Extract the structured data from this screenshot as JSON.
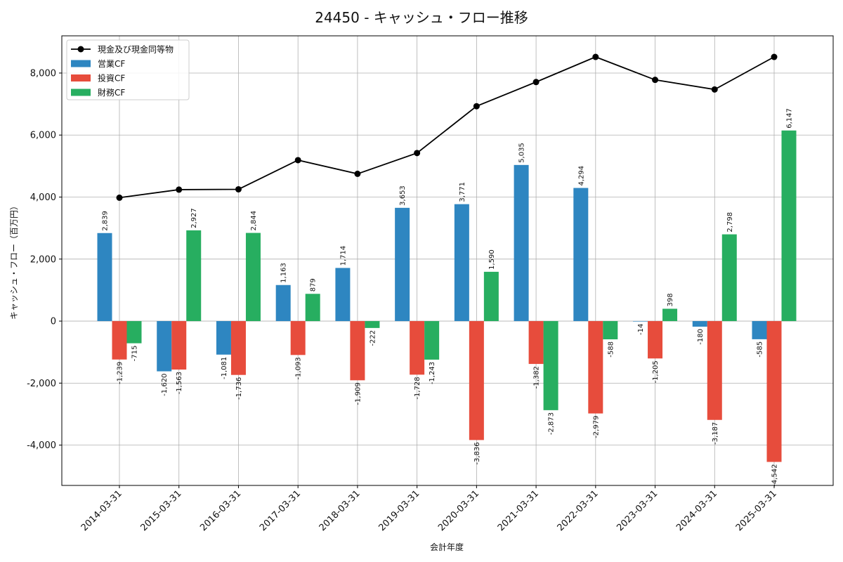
{
  "chart_data": {
    "type": "bar",
    "title": "24450 - キャッシュ・フロー推移",
    "xlabel": "会計年度",
    "ylabel": "キャッシュ・フロー（百万円）",
    "categories": [
      "2014-03-31",
      "2015-03-31",
      "2016-03-31",
      "2017-03-31",
      "2018-03-31",
      "2019-03-31",
      "2020-03-31",
      "2021-03-31",
      "2022-03-31",
      "2023-03-31",
      "2024-03-31",
      "2025-03-31"
    ],
    "series": [
      {
        "name": "営業CF",
        "type": "bar",
        "color": "#2e86c1",
        "values": [
          2839,
          -1620,
          -1081,
          1163,
          1714,
          3653,
          3771,
          5035,
          4294,
          -14,
          -180,
          -585
        ],
        "labels": [
          "2,839",
          "-1,620",
          "-1,081",
          "1,163",
          "1,714",
          "3,653",
          "3,771",
          "5,035",
          "4,294",
          "-14",
          "-180",
          "-585"
        ]
      },
      {
        "name": "投資CF",
        "type": "bar",
        "color": "#e74c3c",
        "values": [
          -1239,
          -1563,
          -1736,
          -1093,
          -1909,
          -1728,
          -3836,
          -1382,
          -2979,
          -1205,
          -3187,
          -4542
        ],
        "labels": [
          "-1,239",
          "-1,563",
          "-1,736",
          "-1,093",
          "-1,909",
          "-1,728",
          "-3,836",
          "-1,382",
          "-2,979",
          "-1,205",
          "-3,187",
          "-4,542"
        ]
      },
      {
        "name": "財務CF",
        "type": "bar",
        "color": "#27ae60",
        "values": [
          -715,
          2927,
          2844,
          879,
          -222,
          -1243,
          1590,
          -2873,
          -588,
          398,
          2798,
          6147
        ],
        "labels": [
          "-715",
          "2,927",
          "2,844",
          "879",
          "-222",
          "-1,243",
          "1,590",
          "-2,873",
          "-588",
          "398",
          "2,798",
          "6,147"
        ]
      },
      {
        "name": "現金及び現金同等物",
        "type": "line",
        "color": "#000000",
        "values": [
          3980,
          4240,
          4250,
          5190,
          4750,
          5420,
          6930,
          7710,
          8520,
          7780,
          7470,
          8520
        ]
      }
    ],
    "ylim": [
      -5300,
      9200
    ],
    "yticks": [
      -4000,
      -2000,
      0,
      2000,
      4000,
      6000,
      8000
    ],
    "ytick_labels": [
      "-4,000",
      "-2,000",
      "0",
      "2,000",
      "4,000",
      "6,000",
      "8,000"
    ],
    "grid": true,
    "legend_position": "top-left"
  }
}
